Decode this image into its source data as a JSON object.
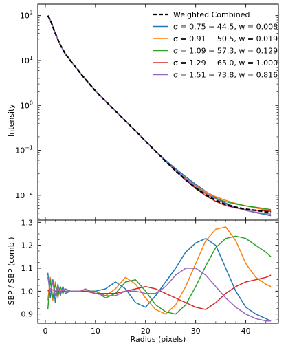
{
  "chart_data": [
    {
      "type": "line",
      "title": "",
      "xlabel": "",
      "ylabel": "Intensity",
      "yscale": "log",
      "xlim": [
        -1.5,
        46.5
      ],
      "ylim": [
        0.0028,
        180
      ],
      "yticks": [
        {
          "value": 100,
          "base": "10",
          "exp": "2"
        },
        {
          "value": 10,
          "base": "10",
          "exp": "1"
        },
        {
          "value": 1,
          "base": "10",
          "exp": "0"
        },
        {
          "value": 0.1,
          "base": "10",
          "exp": "−1"
        },
        {
          "value": 0.01,
          "base": "10",
          "exp": "−2"
        }
      ],
      "legend_position": "top-right",
      "series": [
        {
          "name": "Weighted Combined",
          "color": "#000000",
          "dashed": true,
          "x": [
            0.5,
            1,
            2,
            3,
            4,
            5,
            6,
            8,
            10,
            12,
            14,
            16,
            18,
            20,
            22,
            24,
            26,
            28,
            30,
            32,
            34,
            36,
            38,
            40,
            42,
            44,
            45
          ],
          "y": [
            100,
            80,
            40,
            22,
            14,
            10,
            7.2,
            3.8,
            2.1,
            1.25,
            0.75,
            0.45,
            0.27,
            0.16,
            0.095,
            0.057,
            0.035,
            0.022,
            0.0145,
            0.0102,
            0.0077,
            0.0062,
            0.0054,
            0.0049,
            0.0046,
            0.0043,
            0.0042
          ]
        },
        {
          "name": "σ = 0.75 − 44.5, w = 0.008",
          "color": "#1f77b4",
          "x": [
            0.5,
            1,
            2,
            3,
            4,
            5,
            6,
            8,
            10,
            12,
            14,
            16,
            18,
            20,
            22,
            24,
            26,
            28,
            30,
            32,
            34,
            36,
            38,
            40,
            42,
            44,
            45
          ],
          "y": [
            100,
            80,
            40,
            22,
            14,
            10,
            7.2,
            3.8,
            2.1,
            1.25,
            0.75,
            0.45,
            0.27,
            0.16,
            0.096,
            0.06,
            0.039,
            0.026,
            0.0175,
            0.0122,
            0.0088,
            0.0067,
            0.0054,
            0.0046,
            0.0041,
            0.0037,
            0.0035
          ]
        },
        {
          "name": "σ = 0.91 − 50.5, w = 0.019",
          "color": "#ff7f0e",
          "x": [
            0.5,
            1,
            2,
            3,
            4,
            5,
            6,
            8,
            10,
            12,
            14,
            16,
            18,
            20,
            22,
            24,
            26,
            28,
            30,
            32,
            34,
            36,
            38,
            40,
            42,
            44,
            45
          ],
          "y": [
            100,
            80,
            40,
            22,
            14,
            10,
            7.2,
            3.8,
            2.1,
            1.25,
            0.75,
            0.45,
            0.27,
            0.16,
            0.095,
            0.058,
            0.036,
            0.024,
            0.0165,
            0.012,
            0.0093,
            0.0077,
            0.0066,
            0.0058,
            0.0052,
            0.0047,
            0.0045
          ]
        },
        {
          "name": "σ = 1.09 − 57.3, w = 0.129",
          "color": "#2ca02c",
          "x": [
            0.5,
            1,
            2,
            3,
            4,
            5,
            6,
            8,
            10,
            12,
            14,
            16,
            18,
            20,
            22,
            24,
            26,
            28,
            30,
            32,
            34,
            36,
            38,
            40,
            42,
            44,
            45
          ],
          "y": [
            100,
            80,
            40,
            22,
            14,
            10,
            7.2,
            3.8,
            2.1,
            1.25,
            0.75,
            0.45,
            0.27,
            0.16,
            0.096,
            0.057,
            0.035,
            0.022,
            0.0148,
            0.0108,
            0.0085,
            0.0072,
            0.0064,
            0.0058,
            0.0054,
            0.005,
            0.0048
          ]
        },
        {
          "name": "σ = 1.29 − 65.0, w = 1.000",
          "color": "#d62728",
          "x": [
            0.5,
            1,
            2,
            3,
            4,
            5,
            6,
            8,
            10,
            12,
            14,
            16,
            18,
            20,
            22,
            24,
            26,
            28,
            30,
            32,
            34,
            36,
            38,
            40,
            42,
            44,
            45
          ],
          "y": [
            100,
            80,
            40,
            22,
            14,
            10,
            7.2,
            3.8,
            2.1,
            1.25,
            0.75,
            0.45,
            0.27,
            0.16,
            0.096,
            0.058,
            0.035,
            0.022,
            0.0142,
            0.0098,
            0.0073,
            0.0059,
            0.0052,
            0.0048,
            0.0046,
            0.0045,
            0.0044
          ]
        },
        {
          "name": "σ = 1.51 − 73.8, w = 0.816",
          "color": "#9467bd",
          "x": [
            0.5,
            1,
            2,
            3,
            4,
            5,
            6,
            8,
            10,
            12,
            14,
            16,
            18,
            20,
            22,
            24,
            26,
            28,
            30,
            32,
            34,
            36,
            38,
            40,
            42,
            44,
            45
          ],
          "y": [
            100,
            80,
            40,
            22,
            14,
            10,
            7.2,
            3.8,
            2.1,
            1.25,
            0.75,
            0.45,
            0.27,
            0.16,
            0.095,
            0.057,
            0.036,
            0.024,
            0.016,
            0.0112,
            0.0083,
            0.0064,
            0.0053,
            0.0046,
            0.0042,
            0.0039,
            0.0038
          ]
        }
      ]
    },
    {
      "type": "line",
      "title": "",
      "xlabel": "Radius (pixels)",
      "ylabel": "SBP / SBP (comb.)",
      "xlim": [
        -1.5,
        46.5
      ],
      "ylim": [
        0.86,
        1.31
      ],
      "xticks": [
        0,
        10,
        20,
        30,
        40
      ],
      "yticks": [
        0.9,
        1.0,
        1.1,
        1.2,
        1.3
      ],
      "ytick_labels": [
        "0.9",
        "1.0",
        "1.1",
        "1.2",
        "1.3"
      ],
      "series": [
        {
          "name": "σ = 0.75 − 44.5, w = 0.008",
          "color": "#1f77b4",
          "x": [
            0.5,
            1,
            1.5,
            2,
            2.5,
            3,
            3.5,
            4,
            5,
            6,
            7,
            8,
            10,
            12,
            14,
            16,
            18,
            20,
            22,
            24,
            26,
            28,
            30,
            32,
            34,
            36,
            38,
            40,
            42,
            44,
            45
          ],
          "y": [
            1.08,
            0.97,
            1.05,
            0.95,
            1.03,
            0.98,
            1.02,
            0.99,
            1.0,
            1.0,
            1.0,
            1.0,
            1.0,
            1.01,
            1.04,
            1.01,
            0.95,
            0.93,
            0.98,
            1.04,
            1.1,
            1.17,
            1.21,
            1.23,
            1.2,
            1.1,
            1.0,
            0.93,
            0.9,
            0.88,
            0.87
          ]
        },
        {
          "name": "σ = 0.91 − 50.5, w = 0.019",
          "color": "#ff7f0e",
          "x": [
            0.5,
            1,
            1.5,
            2,
            2.5,
            3,
            3.5,
            4,
            5,
            6,
            7,
            8,
            10,
            12,
            14,
            16,
            18,
            20,
            22,
            24,
            26,
            28,
            30,
            32,
            34,
            36,
            38,
            40,
            42,
            44,
            45
          ],
          "y": [
            0.96,
            1.06,
            0.96,
            1.04,
            0.97,
            1.02,
            0.99,
            1.01,
            1.0,
            1.0,
            1.0,
            1.0,
            1.0,
            0.98,
            1.01,
            1.06,
            1.03,
            0.97,
            0.92,
            0.9,
            0.94,
            1.02,
            1.12,
            1.22,
            1.27,
            1.28,
            1.22,
            1.12,
            1.06,
            1.03,
            1.02
          ]
        },
        {
          "name": "σ = 1.09 − 57.3, w = 0.129",
          "color": "#2ca02c",
          "x": [
            0.5,
            1,
            1.5,
            2,
            2.5,
            3,
            3.5,
            4,
            5,
            6,
            7,
            8,
            10,
            12,
            14,
            16,
            18,
            20,
            22,
            24,
            26,
            28,
            30,
            32,
            34,
            36,
            38,
            40,
            42,
            44,
            45
          ],
          "y": [
            0.92,
            1.05,
            0.97,
            1.03,
            0.98,
            1.02,
            0.99,
            1.01,
            1.0,
            1.0,
            1.0,
            1.0,
            1.0,
            0.97,
            0.99,
            1.04,
            1.05,
            1.0,
            0.94,
            0.91,
            0.9,
            0.94,
            1.02,
            1.11,
            1.19,
            1.23,
            1.24,
            1.23,
            1.2,
            1.17,
            1.15
          ]
        },
        {
          "name": "σ = 1.29 − 65.0, w = 1.000",
          "color": "#d62728",
          "x": [
            0.5,
            1,
            2,
            3,
            4,
            5,
            6,
            8,
            10,
            12,
            14,
            16,
            18,
            20,
            22,
            24,
            26,
            28,
            30,
            32,
            34,
            36,
            38,
            40,
            42,
            44,
            45
          ],
          "y": [
            1.0,
            1.01,
            1.0,
            1.0,
            1.0,
            1.0,
            1.0,
            1.0,
            0.99,
            0.99,
            0.99,
            1.0,
            1.01,
            1.02,
            1.01,
            0.99,
            0.97,
            0.95,
            0.93,
            0.92,
            0.95,
            0.99,
            1.02,
            1.04,
            1.05,
            1.06,
            1.07
          ]
        },
        {
          "name": "σ = 1.51 − 73.8, w = 0.816",
          "color": "#9467bd",
          "x": [
            0.5,
            1,
            1.5,
            2,
            2.5,
            3,
            3.5,
            4,
            5,
            6,
            7,
            8,
            10,
            12,
            14,
            16,
            18,
            20,
            22,
            24,
            26,
            28,
            30,
            32,
            34,
            36,
            38,
            40,
            42,
            44,
            45
          ],
          "y": [
            1.06,
            1.0,
            1.04,
            0.98,
            1.02,
            0.99,
            1.01,
            1.0,
            1.0,
            1.0,
            1.0,
            1.01,
            0.99,
            0.98,
            0.98,
            1.0,
            1.0,
            0.99,
            0.99,
            1.02,
            1.07,
            1.1,
            1.1,
            1.07,
            1.02,
            0.97,
            0.93,
            0.9,
            0.88,
            0.87,
            0.87
          ]
        }
      ]
    }
  ]
}
